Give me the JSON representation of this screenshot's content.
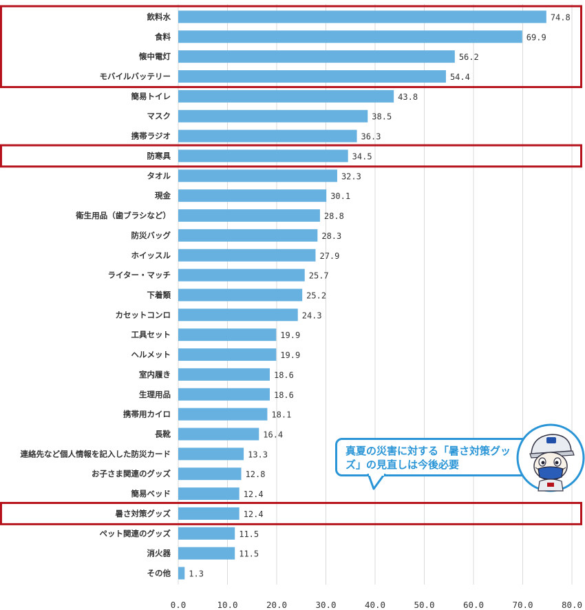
{
  "chart_data": {
    "type": "bar",
    "orientation": "horizontal",
    "categories": [
      "飲料水",
      "食料",
      "懐中電灯",
      "モバイルバッテリー",
      "簡易トイレ",
      "マスク",
      "携帯ラジオ",
      "防寒具",
      "タオル",
      "現金",
      "衛生用品（歯ブラシなど）",
      "防災バッグ",
      "ホイッスル",
      "ライター・マッチ",
      "下着類",
      "カセットコンロ",
      "工具セット",
      "ヘルメット",
      "室内履き",
      "生理用品",
      "携帯用カイロ",
      "長靴",
      "連絡先など個人情報を記入した防災カード",
      "お子さま関連のグッズ",
      "簡易ベッド",
      "暑さ対策グッズ",
      "ペット関連のグッズ",
      "消火器",
      "その他"
    ],
    "values": [
      74.8,
      69.9,
      56.2,
      54.4,
      43.8,
      38.5,
      36.3,
      34.5,
      32.3,
      30.1,
      28.8,
      28.3,
      27.9,
      25.7,
      25.2,
      24.3,
      19.9,
      19.9,
      18.6,
      18.6,
      18.1,
      16.4,
      13.3,
      12.8,
      12.4,
      12.4,
      11.5,
      11.5,
      1.3
    ],
    "value_labels": [
      "74.8",
      "69.9",
      "56.2",
      "54.4",
      "43.8",
      "38.5",
      "36.3",
      "34.5",
      "32.3",
      "30.1",
      "28.8",
      "28.3",
      "27.9",
      "25.7",
      "25.2",
      "24.3",
      "19.9",
      "19.9",
      "18.6",
      "18.6",
      "18.1",
      "16.4",
      "13.3",
      "12.8",
      "12.4",
      "12.4",
      "11.5",
      "11.5",
      "1.3"
    ],
    "xlim": [
      0,
      80
    ],
    "xticks": [
      "0.0",
      "10.0",
      "20.0",
      "30.0",
      "40.0",
      "50.0",
      "60.0",
      "70.0",
      "80.0"
    ],
    "grid": "vertical",
    "highlight_groups": [
      {
        "from": 0,
        "to": 3
      },
      {
        "from": 7,
        "to": 7
      },
      {
        "from": 25,
        "to": 25
      }
    ]
  },
  "colors": {
    "bar": "#66b1e0",
    "highlight": "#b5121b",
    "callout": "#2a95d6",
    "grid": "#d9d9d9"
  },
  "callout": {
    "text": "真夏の災害に対する「暑さ対策グッズ」の見直しは今後必要"
  },
  "mascot": {
    "icon": "mascot-character-icon"
  }
}
